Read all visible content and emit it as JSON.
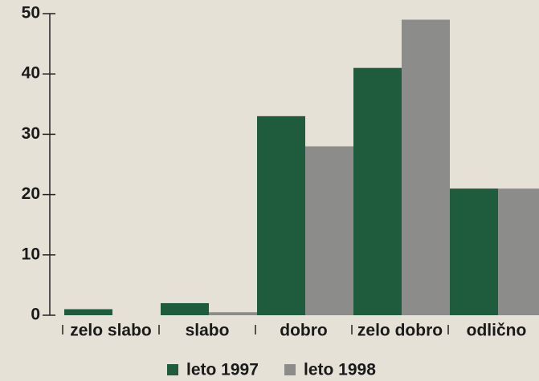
{
  "chart_data": {
    "type": "bar",
    "categories": [
      "zelo slabo",
      "slabo",
      "dobro",
      "zelo dobro",
      "odlično"
    ],
    "series": [
      {
        "name": "leto 1997",
        "color": "#1f5b3d",
        "values": [
          1,
          2,
          33,
          41,
          21
        ]
      },
      {
        "name": "leto 1998",
        "color": "#8c8c8a",
        "values": [
          0,
          0.5,
          28,
          49,
          21
        ]
      }
    ],
    "ylim": [
      0,
      50
    ],
    "yticks": [
      0,
      10,
      20,
      30,
      40,
      50
    ],
    "legend": "bottom"
  }
}
